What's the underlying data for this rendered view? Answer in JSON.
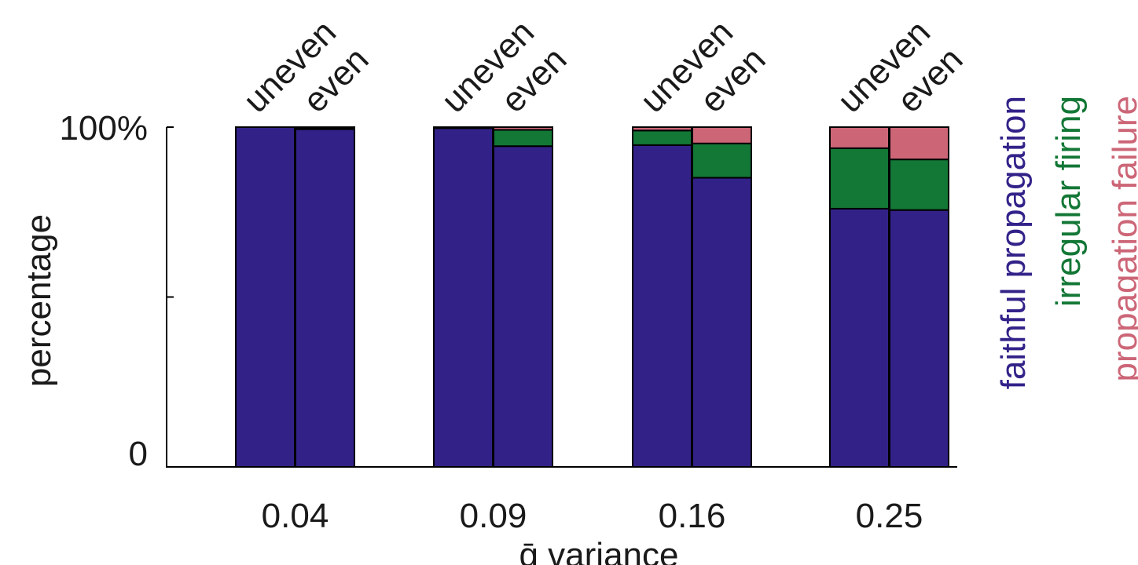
{
  "chart_data": {
    "type": "bar",
    "stacked": true,
    "xlabel": "ḡ variance",
    "ylabel": "percentage",
    "ylim": [
      0,
      100
    ],
    "y_tick_labels": [
      "0",
      "",
      "100%"
    ],
    "y_tick_values": [
      0,
      50,
      100
    ],
    "categories": [
      "0.04",
      "0.09",
      "0.16",
      "0.25"
    ],
    "bar_labels": [
      "uneven",
      "even"
    ],
    "series": [
      {
        "name": "faithful propagation",
        "color": "#322288",
        "values": {
          "uneven": [
            100,
            99.7,
            94.7,
            76.0
          ],
          "even": [
            99.4,
            94.4,
            85.1,
            75.6
          ]
        }
      },
      {
        "name": "irregular firing",
        "color": "#137736",
        "values": {
          "uneven": [
            0,
            0.2,
            4.3,
            17.8
          ],
          "even": [
            0.4,
            4.8,
            10.1,
            14.9
          ]
        }
      },
      {
        "name": "propagation failure",
        "color": "#cc6677",
        "values": {
          "uneven": [
            0,
            0.1,
            1.0,
            6.2
          ],
          "even": [
            0.2,
            0.8,
            4.8,
            9.5
          ]
        }
      }
    ],
    "legend_position": "right",
    "grid": false
  }
}
